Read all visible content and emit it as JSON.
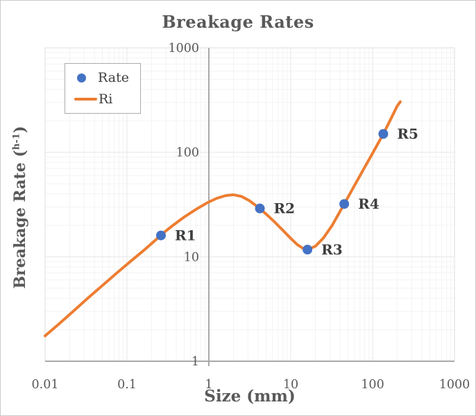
{
  "chart_data": {
    "type": "line+scatter",
    "title": "Breakage Rates",
    "x_axis": {
      "label": "Size (mm)",
      "scale": "log",
      "min": 0.01,
      "max": 1000,
      "ticks": [
        {
          "v": 0.01,
          "label": "0.01"
        },
        {
          "v": 0.1,
          "label": "0.1"
        },
        {
          "v": 1,
          "label": "1"
        },
        {
          "v": 10,
          "label": "10"
        },
        {
          "v": 100,
          "label": "100"
        },
        {
          "v": 1000,
          "label": "1000"
        }
      ]
    },
    "y_axis": {
      "label": "Breakage Rate (h-1)",
      "label_prefix": "Breakage Rate (",
      "label_sup": "h-1",
      "label_suffix": ")",
      "scale": "log",
      "min": 1,
      "max": 1000,
      "crosses_x_at": 1,
      "ticks": [
        {
          "v": 1,
          "label": "1"
        },
        {
          "v": 10,
          "label": "10"
        },
        {
          "v": 100,
          "label": "100"
        },
        {
          "v": 1000,
          "label": "1000"
        }
      ]
    },
    "grid": {
      "major": true,
      "minor": true
    },
    "legend": {
      "position": "top-left",
      "items": [
        {
          "label": "Rate",
          "marker": "dot",
          "color": "#4472C4"
        },
        {
          "label": "Ri",
          "marker": "line",
          "color": "#ED7D31"
        }
      ]
    },
    "series": [
      {
        "name": "Ri",
        "type": "line",
        "color": "#ED7D31",
        "stroke_width": 4,
        "points": [
          [
            0.01,
            1.75
          ],
          [
            0.015,
            2.3
          ],
          [
            0.022,
            3.0
          ],
          [
            0.033,
            4.0
          ],
          [
            0.05,
            5.3
          ],
          [
            0.075,
            7.0
          ],
          [
            0.11,
            9.0
          ],
          [
            0.16,
            11.5
          ],
          [
            0.22,
            14.3
          ],
          [
            0.26,
            16.2
          ],
          [
            0.35,
            19.5
          ],
          [
            0.5,
            24.0
          ],
          [
            0.7,
            28.5
          ],
          [
            0.95,
            32.8
          ],
          [
            1.25,
            36.3
          ],
          [
            1.6,
            38.5
          ],
          [
            2.0,
            39.2
          ],
          [
            2.5,
            37.8
          ],
          [
            3.1,
            34.6
          ],
          [
            4.2,
            29.0
          ],
          [
            5.3,
            24.6
          ],
          [
            6.6,
            20.9
          ],
          [
            8.2,
            17.6
          ],
          [
            10,
            15.0
          ],
          [
            12,
            13.1
          ],
          [
            14,
            12.1
          ],
          [
            16,
            11.7
          ],
          [
            20,
            12.6
          ],
          [
            25,
            15.1
          ],
          [
            32,
            19.9
          ],
          [
            38,
            25.3
          ],
          [
            45,
            32.0
          ],
          [
            60,
            48.0
          ],
          [
            80,
            72.0
          ],
          [
            100,
            98.0
          ],
          [
            135,
            150.0
          ],
          [
            165,
            205.0
          ],
          [
            200,
            278.0
          ],
          [
            218,
            305.0
          ]
        ]
      },
      {
        "name": "Rate",
        "type": "scatter",
        "color": "#4472C4",
        "marker_radius": 7,
        "points": [
          {
            "x": 0.26,
            "y": 16,
            "label": "R1"
          },
          {
            "x": 4.2,
            "y": 29,
            "label": "R2"
          },
          {
            "x": 16,
            "y": 11.7,
            "label": "R3"
          },
          {
            "x": 45,
            "y": 32,
            "label": "R4"
          },
          {
            "x": 135,
            "y": 150,
            "label": "R5"
          }
        ]
      }
    ],
    "colors": {
      "title_text": "#595959",
      "tick_text": "#595959",
      "point_label_text": "#3d3d3d",
      "grid_major": "#e7e7e7",
      "grid_minor": "#f3f3f3",
      "axis_line": "#a9a9a9",
      "plot_border": "#dcdcdc"
    }
  }
}
